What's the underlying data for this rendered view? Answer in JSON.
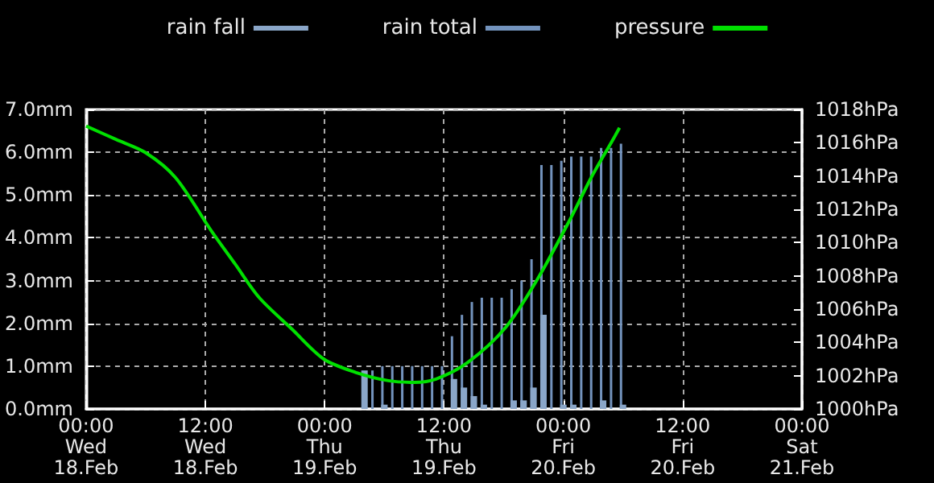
{
  "chart_data": {
    "type": "bar",
    "xlim": [
      "--02-18T00:00",
      "--02-21T00:00"
    ],
    "xticks": [
      {
        "value": "--02-18T00:00",
        "label": "00:00\nWed\n18.Feb"
      },
      {
        "value": "--02-18T12:00",
        "label": "12:00\nWed\n18.Feb"
      },
      {
        "value": "--02-19T00:00",
        "label": "00:00\nThu\n19.Feb"
      },
      {
        "value": "--02-19T12:00",
        "label": "12:00\nThu\n19.Feb"
      },
      {
        "value": "--02-20T00:00",
        "label": "00:00\nFri\n20.Feb"
      },
      {
        "value": "--02-20T12:00",
        "label": "12:00\nFri\n20.Feb"
      },
      {
        "value": "--02-21T00:00",
        "label": "00:00\nSat\n21.Feb"
      }
    ],
    "ylim": [
      0,
      7
    ],
    "yticks": [
      {
        "value": 0,
        "label": "0.0mm"
      },
      {
        "value": 1,
        "label": "1.0mm"
      },
      {
        "value": 2,
        "label": "2.0mm"
      },
      {
        "value": 3,
        "label": "3.0mm"
      },
      {
        "value": 4,
        "label": "4.0mm"
      },
      {
        "value": 5,
        "label": "5.0mm"
      },
      {
        "value": 6,
        "label": "6.0mm"
      },
      {
        "value": 7,
        "label": "7.0mm"
      }
    ],
    "y2lim": [
      1000,
      1018
    ],
    "y2ticks": [
      {
        "value": 1000,
        "label": "1000hPa"
      },
      {
        "value": 1002,
        "label": "1002hPa"
      },
      {
        "value": 1004,
        "label": "1004hPa"
      },
      {
        "value": 1006,
        "label": "1006hPa"
      },
      {
        "value": 1008,
        "label": "1008hPa"
      },
      {
        "value": 1010,
        "label": "1010hPa"
      },
      {
        "value": 1012,
        "label": "1012hPa"
      },
      {
        "value": 1014,
        "label": "1014hPa"
      },
      {
        "value": 1016,
        "label": "1016hPa"
      },
      {
        "value": 1018,
        "label": "1018hPa"
      }
    ],
    "grid": true,
    "legend": "top",
    "x": [
      "--02-19T03:48",
      "--02-19T04:48",
      "--02-19T05:48",
      "--02-19T06:48",
      "--02-19T07:48",
      "--02-19T08:48",
      "--02-19T09:48",
      "--02-19T10:48",
      "--02-19T11:48",
      "--02-19T12:48",
      "--02-19T13:48",
      "--02-19T14:48",
      "--02-19T15:48",
      "--02-19T16:48",
      "--02-19T17:48",
      "--02-19T18:48",
      "--02-19T19:48",
      "--02-19T20:48",
      "--02-19T21:48",
      "--02-19T22:48",
      "--02-19T23:48",
      "--02-20T00:48",
      "--02-20T01:48",
      "--02-20T02:48",
      "--02-20T03:48",
      "--02-20T04:48",
      "--02-20T05:48"
    ],
    "series": [
      {
        "name": "rain fall",
        "color": "#8aa6c8",
        "values": [
          0.9,
          0,
          0.1,
          0,
          0,
          0,
          0,
          0,
          0,
          0.7,
          0.5,
          0.3,
          0.1,
          0,
          0,
          0.2,
          0.2,
          0.5,
          2.2,
          0,
          0.1,
          0.1,
          0,
          0,
          0.2,
          0,
          0.1
        ]
      },
      {
        "name": "rain total",
        "color": "#7393bd",
        "values": [
          null,
          0.9,
          1.0,
          1.0,
          1.0,
          1.0,
          1.0,
          1.0,
          1.0,
          1.7,
          2.2,
          2.5,
          2.6,
          2.6,
          2.6,
          2.8,
          3.0,
          3.5,
          5.7,
          5.7,
          5.8,
          5.9,
          5.9,
          5.9,
          6.1,
          6.1,
          6.2
        ]
      },
      {
        "name": "pressure",
        "type": "line",
        "axis": "y2",
        "color": "#00e000",
        "x": [
          "--02-18T00:00",
          "--02-18T03:00",
          "--02-18T06:00",
          "--02-18T09:00",
          "--02-18T12:36",
          "--02-18T15:00",
          "--02-18T17:24",
          "--02-18T20:42",
          "--02-18T23:54",
          "--02-19T03:06",
          "--02-19T06:24",
          "--02-19T09:00",
          "--02-19T11:12",
          "--02-19T14:24",
          "--02-19T18:12",
          "--02-19T21:24",
          "--02-20T00:36",
          "--02-20T02:48",
          "--02-20T05:00",
          "--02-20T05:39"
        ],
        "values": [
          1017.0,
          1016.2,
          1015.4,
          1013.9,
          1010.7,
          1008.7,
          1006.7,
          1004.8,
          1003.0,
          1002.2,
          1001.7,
          1001.6,
          1001.8,
          1002.8,
          1004.9,
          1007.8,
          1011.3,
          1013.9,
          1016.2,
          1016.9
        ]
      }
    ]
  }
}
